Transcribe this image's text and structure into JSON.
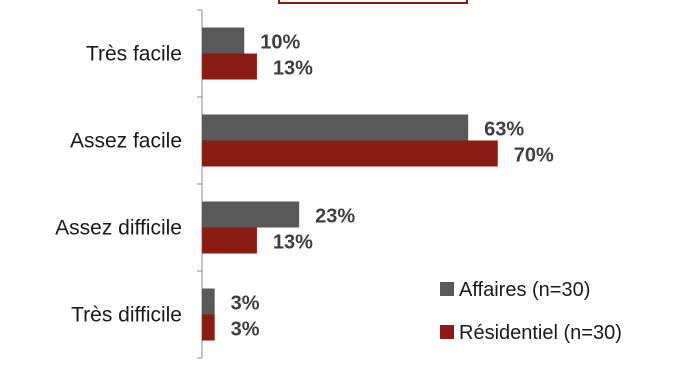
{
  "chart_data": {
    "type": "bar",
    "orientation": "horizontal",
    "categories": [
      "Très facile",
      "Assez facile",
      "Assez difficile",
      "Très difficile"
    ],
    "series": [
      {
        "name": "Affaires (n=30)",
        "color": "#595959",
        "values": [
          10,
          63,
          23,
          3
        ],
        "labels": [
          "10%",
          "63%",
          "23%",
          "3%"
        ]
      },
      {
        "name": "Résidentiel (n=30)",
        "color": "#8b1c13",
        "values": [
          13,
          70,
          13,
          3
        ],
        "labels": [
          "13%",
          "70%",
          "13%",
          "3%"
        ]
      }
    ],
    "xlim": [
      0,
      100
    ],
    "grid": false,
    "legend_position": "bottom-right"
  }
}
